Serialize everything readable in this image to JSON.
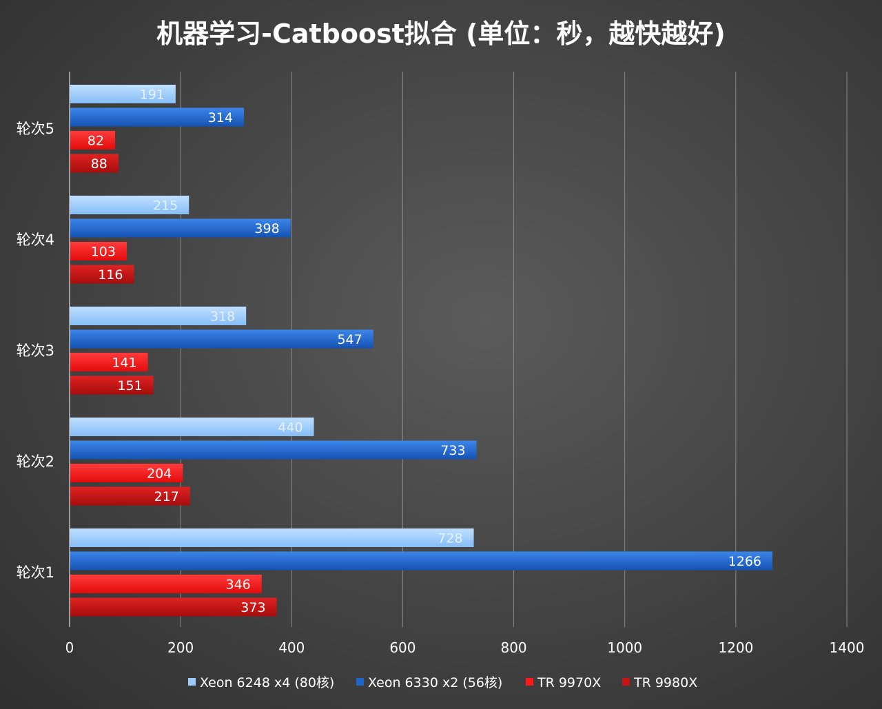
{
  "chart_data": {
    "type": "bar",
    "orientation": "horizontal",
    "title": "机器学习-Catboost拟合 (单位：秒，越快越好)",
    "categories": [
      "轮次1",
      "轮次2",
      "轮次3",
      "轮次4",
      "轮次5"
    ],
    "series": [
      {
        "name": "Xeon 6248 x4 (80核)",
        "values": [
          728,
          440,
          318,
          215,
          191
        ],
        "color": "#9dcbfb",
        "label_color": "#e6f1ff"
      },
      {
        "name": "Xeon 6330 x2 (56核)",
        "values": [
          1266,
          733,
          547,
          398,
          314
        ],
        "color": "#1f66cc",
        "label_color": "#ffffff"
      },
      {
        "name": "TR 9970X",
        "values": [
          346,
          204,
          141,
          103,
          82
        ],
        "color": "#ff1a1a",
        "label_color": "#ffffff"
      },
      {
        "name": "TR 9980X",
        "values": [
          373,
          217,
          151,
          116,
          88
        ],
        "color": "#c41414",
        "label_color": "#ffffff"
      }
    ],
    "xlim": [
      0,
      1400
    ],
    "x_ticks": [
      0,
      200,
      400,
      600,
      800,
      1000,
      1200,
      1400
    ],
    "grid": true,
    "legend_position": "bottom"
  }
}
